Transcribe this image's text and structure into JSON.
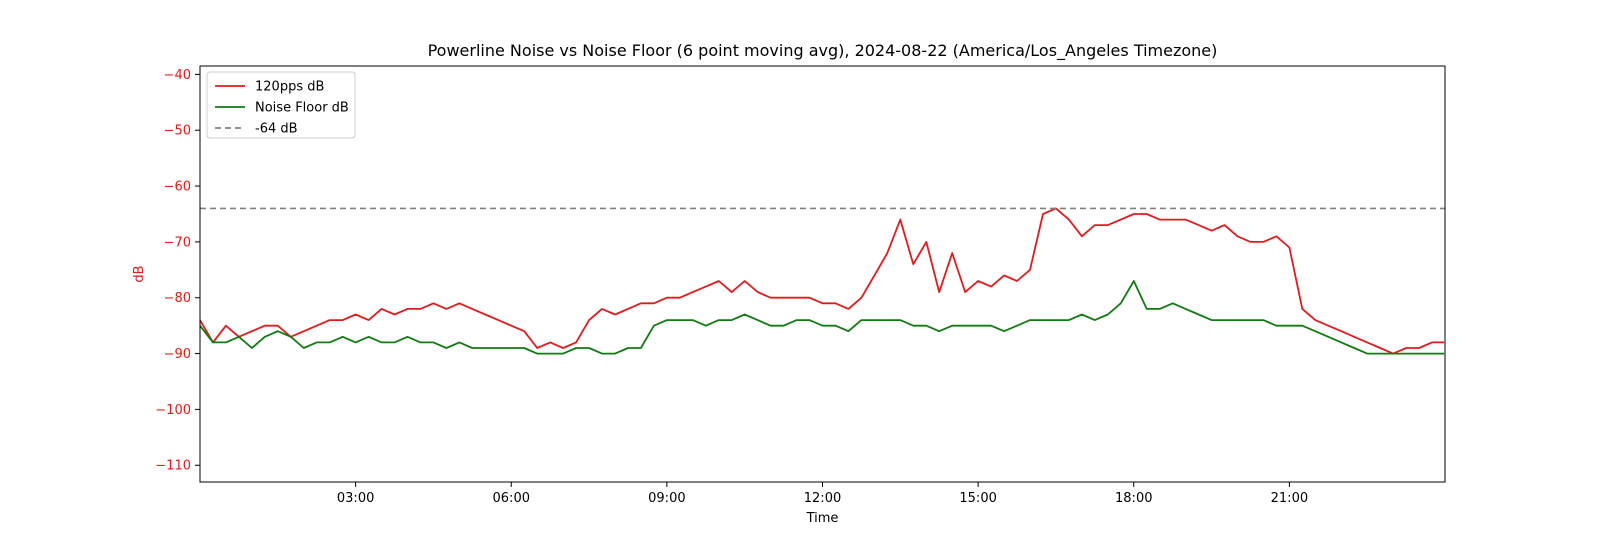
{
  "chart_data": {
    "type": "line",
    "title": "Powerline Noise vs Noise Floor (6 point moving avg), 2024-08-22 (America/Los_Angeles Timezone)",
    "xlabel": "Time",
    "ylabel": "dB",
    "xlim": [
      "00:00",
      "24:00"
    ],
    "ylim": [
      -113,
      -38.5
    ],
    "xticks": [
      "03:00",
      "06:00",
      "09:00",
      "12:00",
      "15:00",
      "18:00",
      "21:00"
    ],
    "yticks": [
      -40,
      -50,
      -60,
      -70,
      -80,
      -90,
      -100,
      -110
    ],
    "legend_position": "upper left",
    "colors": {
      "signal": "#e31a1c",
      "floor": "#117a11",
      "reference": "#808080",
      "y_axis_text": "#e31a1c"
    },
    "series": [
      {
        "name": "120pps dB",
        "color": "#e31a1c",
        "x": [
          "00:00",
          "00:15",
          "00:30",
          "00:45",
          "01:00",
          "01:15",
          "01:30",
          "01:45",
          "02:00",
          "02:15",
          "02:30",
          "02:45",
          "03:00",
          "03:15",
          "03:30",
          "03:45",
          "04:00",
          "04:15",
          "04:30",
          "04:45",
          "05:00",
          "05:15",
          "05:30",
          "05:45",
          "06:00",
          "06:15",
          "06:30",
          "06:45",
          "07:00",
          "07:15",
          "07:30",
          "07:45",
          "08:00",
          "08:15",
          "08:30",
          "08:45",
          "09:00",
          "09:15",
          "09:30",
          "09:45",
          "10:00",
          "10:15",
          "10:30",
          "10:45",
          "11:00",
          "11:15",
          "11:30",
          "11:45",
          "12:00",
          "12:15",
          "12:30",
          "12:45",
          "13:00",
          "13:15",
          "13:30",
          "13:45",
          "14:00",
          "14:15",
          "14:30",
          "14:45",
          "15:00",
          "15:15",
          "15:30",
          "15:45",
          "16:00",
          "16:15",
          "16:30",
          "16:45",
          "17:00",
          "17:15",
          "17:30",
          "17:45",
          "18:00",
          "18:15",
          "18:30",
          "18:45",
          "19:00",
          "19:15",
          "19:30",
          "19:45",
          "20:00",
          "20:15",
          "20:30",
          "20:45",
          "21:00",
          "21:15",
          "21:30",
          "21:45",
          "22:00",
          "22:15",
          "22:30",
          "22:45",
          "23:00",
          "23:15",
          "23:30",
          "23:45",
          "23:59"
        ],
        "values": [
          -84,
          -88,
          -85,
          -87,
          -86,
          -85,
          -85,
          -87,
          -86,
          -85,
          -84,
          -84,
          -83,
          -84,
          -82,
          -83,
          -82,
          -82,
          -81,
          -82,
          -81,
          -82,
          -83,
          -84,
          -85,
          -86,
          -89,
          -88,
          -89,
          -88,
          -84,
          -82,
          -83,
          -82,
          -81,
          -81,
          -80,
          -80,
          -79,
          -78,
          -77,
          -79,
          -77,
          -79,
          -80,
          -80,
          -80,
          -80,
          -81,
          -81,
          -82,
          -80,
          -76,
          -72,
          -66,
          -74,
          -70,
          -79,
          -72,
          -79,
          -77,
          -78,
          -76,
          -77,
          -75,
          -65,
          -64,
          -66,
          -69,
          -67,
          -67,
          -66,
          -65,
          -65,
          -66,
          -66,
          -66,
          -67,
          -68,
          -67,
          -69,
          -70,
          -70,
          -69,
          -71,
          -82,
          -84,
          -85,
          -86,
          -87,
          -88,
          -89,
          -90,
          -89,
          -89,
          -88,
          -88
        ]
      },
      {
        "name": "Noise Floor dB",
        "color": "#117a11",
        "x": [
          "00:00",
          "00:15",
          "00:30",
          "00:45",
          "01:00",
          "01:15",
          "01:30",
          "01:45",
          "02:00",
          "02:15",
          "02:30",
          "02:45",
          "03:00",
          "03:15",
          "03:30",
          "03:45",
          "04:00",
          "04:15",
          "04:30",
          "04:45",
          "05:00",
          "05:15",
          "05:30",
          "05:45",
          "06:00",
          "06:15",
          "06:30",
          "06:45",
          "07:00",
          "07:15",
          "07:30",
          "07:45",
          "08:00",
          "08:15",
          "08:30",
          "08:45",
          "09:00",
          "09:15",
          "09:30",
          "09:45",
          "10:00",
          "10:15",
          "10:30",
          "10:45",
          "11:00",
          "11:15",
          "11:30",
          "11:45",
          "12:00",
          "12:15",
          "12:30",
          "12:45",
          "13:00",
          "13:15",
          "13:30",
          "13:45",
          "14:00",
          "14:15",
          "14:30",
          "14:45",
          "15:00",
          "15:15",
          "15:30",
          "15:45",
          "16:00",
          "16:15",
          "16:30",
          "16:45",
          "17:00",
          "17:15",
          "17:30",
          "17:45",
          "18:00",
          "18:15",
          "18:30",
          "18:45",
          "19:00",
          "19:15",
          "19:30",
          "19:45",
          "20:00",
          "20:15",
          "20:30",
          "20:45",
          "21:00",
          "21:15",
          "21:30",
          "21:45",
          "22:00",
          "22:15",
          "22:30",
          "22:45",
          "23:00",
          "23:15",
          "23:30",
          "23:45",
          "23:59"
        ],
        "values": [
          -85,
          -88,
          -88,
          -87,
          -89,
          -87,
          -86,
          -87,
          -89,
          -88,
          -88,
          -87,
          -88,
          -87,
          -88,
          -88,
          -87,
          -88,
          -88,
          -89,
          -88,
          -89,
          -89,
          -89,
          -89,
          -89,
          -90,
          -90,
          -90,
          -89,
          -89,
          -90,
          -90,
          -89,
          -89,
          -85,
          -84,
          -84,
          -84,
          -85,
          -84,
          -84,
          -83,
          -84,
          -85,
          -85,
          -84,
          -84,
          -85,
          -85,
          -86,
          -84,
          -84,
          -84,
          -84,
          -85,
          -85,
          -86,
          -85,
          -85,
          -85,
          -85,
          -86,
          -85,
          -84,
          -84,
          -84,
          -84,
          -83,
          -84,
          -83,
          -81,
          -77,
          -82,
          -82,
          -81,
          -82,
          -83,
          -84,
          -84,
          -84,
          -84,
          -84,
          -85,
          -85,
          -85,
          -86,
          -87,
          -88,
          -89,
          -90,
          -90,
          -90,
          -90,
          -90,
          -90,
          -90
        ]
      },
      {
        "name": "-64 dB",
        "color": "#808080",
        "style": "dashed",
        "constant": -64
      }
    ]
  }
}
